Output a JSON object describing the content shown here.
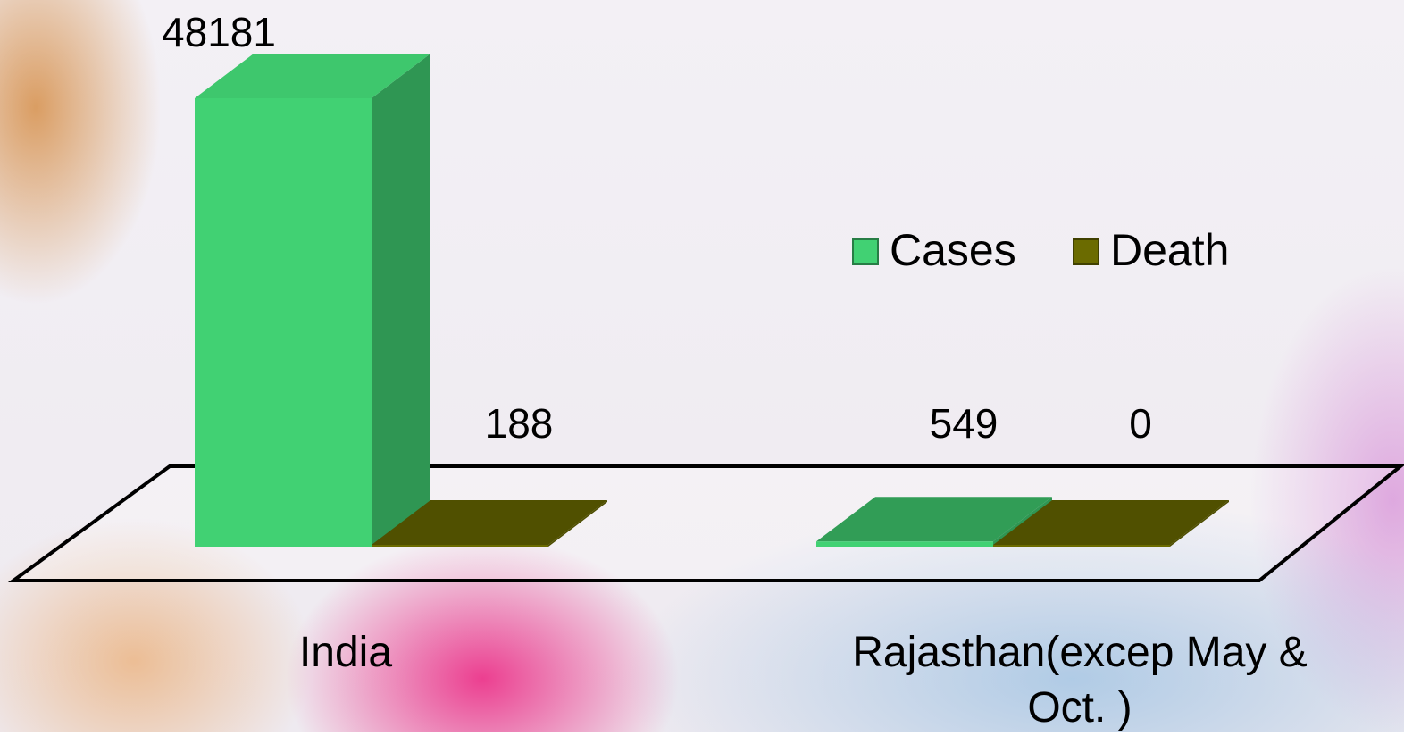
{
  "chart_data": {
    "type": "bar3d",
    "categories": [
      "India",
      "Rajasthan(excep May & Oct. )"
    ],
    "series": [
      {
        "name": "Cases",
        "color": "#41d173",
        "values": [
          48181,
          549
        ]
      },
      {
        "name": "Death",
        "color": "#6b6b00",
        "values": [
          188,
          0
        ]
      }
    ]
  }
}
